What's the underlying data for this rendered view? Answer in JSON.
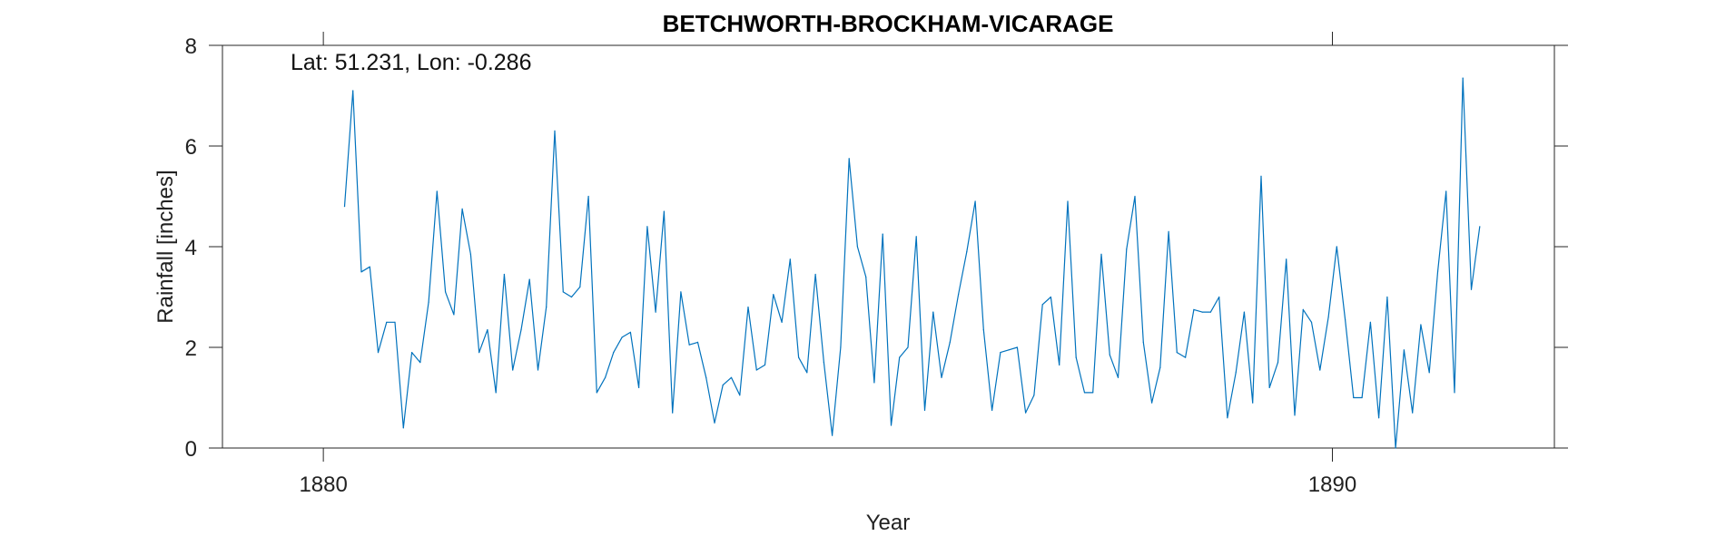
{
  "chart_data": {
    "type": "line",
    "title": "BETCHWORTH-BROCKHAM-VICARAGE",
    "annotation": "Lat: 51.231, Lon: -0.286",
    "xlabel": "Year",
    "ylabel": "Rainfall [inches]",
    "xlim": [
      1879,
      1892.2
    ],
    "ylim": [
      0,
      8
    ],
    "xticks": [
      1880,
      1890
    ],
    "xtick_labels": [
      "1880",
      "1890"
    ],
    "yticks": [
      0,
      2,
      4,
      6,
      8
    ],
    "ytick_labels": [
      "0",
      "2",
      "4",
      "6",
      "8"
    ],
    "grid": false,
    "line_color": "#0072BD",
    "series": [
      {
        "x_start": 1880.21,
        "x_step": 0.0833333,
        "values": [
          4.8,
          7.1,
          3.5,
          3.6,
          1.9,
          2.5,
          2.5,
          0.4,
          1.9,
          1.7,
          2.9,
          5.1,
          3.1,
          2.65,
          4.75,
          3.85,
          1.9,
          2.35,
          1.1,
          3.45,
          1.55,
          2.35,
          3.35,
          1.55,
          2.8,
          6.3,
          3.1,
          3.0,
          3.2,
          5.0,
          1.1,
          1.4,
          1.9,
          2.2,
          2.3,
          1.2,
          4.4,
          2.7,
          4.7,
          0.7,
          3.1,
          2.05,
          2.1,
          1.4,
          0.5,
          1.25,
          1.4,
          1.05,
          2.8,
          1.55,
          1.65,
          3.05,
          2.5,
          3.75,
          1.8,
          1.5,
          3.45,
          1.7,
          0.25,
          2.0,
          5.75,
          4.0,
          3.4,
          1.3,
          4.25,
          0.45,
          1.8,
          2.0,
          4.2,
          0.75,
          2.7,
          1.4,
          2.1,
          3.05,
          3.9,
          4.9,
          2.35,
          0.75,
          1.9,
          1.95,
          2.0,
          0.7,
          1.05,
          2.85,
          3.0,
          1.65,
          4.9,
          1.8,
          1.1,
          1.1,
          3.85,
          1.85,
          1.4,
          3.95,
          5.0,
          2.1,
          0.9,
          1.6,
          4.3,
          1.9,
          1.8,
          2.75,
          2.7,
          2.7,
          3.0,
          0.6,
          1.5,
          2.7,
          0.9,
          5.4,
          1.2,
          1.7,
          3.75,
          0.65,
          2.75,
          2.5,
          1.55,
          2.6,
          4.0,
          2.55,
          1.0,
          1.0,
          2.5,
          0.6,
          3.0,
          0.0,
          1.95,
          0.7,
          2.45,
          1.5,
          3.5,
          5.1,
          1.1,
          7.35,
          3.15,
          4.4
        ]
      }
    ]
  }
}
